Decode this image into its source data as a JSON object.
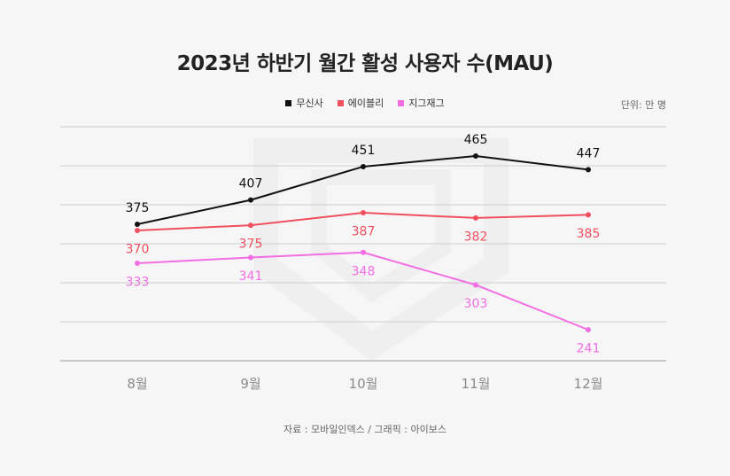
{
  "chart_data": {
    "type": "line",
    "title": "2023년 하반기 월간 활성 사용자 수(MAU)",
    "unit_label": "단위: 만 명",
    "source": "자료 : 모바일인덱스 / 그래픽 : 아이보스",
    "categories": [
      "8월",
      "9월",
      "10월",
      "11월",
      "12월"
    ],
    "series": [
      {
        "name": "무신사",
        "color": "#111111",
        "values": [
          375,
          407,
          451,
          465,
          447
        ]
      },
      {
        "name": "에이블리",
        "color": "#f0505e",
        "values": [
          370,
          375,
          387,
          382,
          385
        ]
      },
      {
        "name": "지그재그",
        "color": "#f26ee3",
        "values": [
          333,
          341,
          348,
          303,
          241
        ]
      }
    ],
    "grid": true,
    "legend_position": "top-center"
  }
}
